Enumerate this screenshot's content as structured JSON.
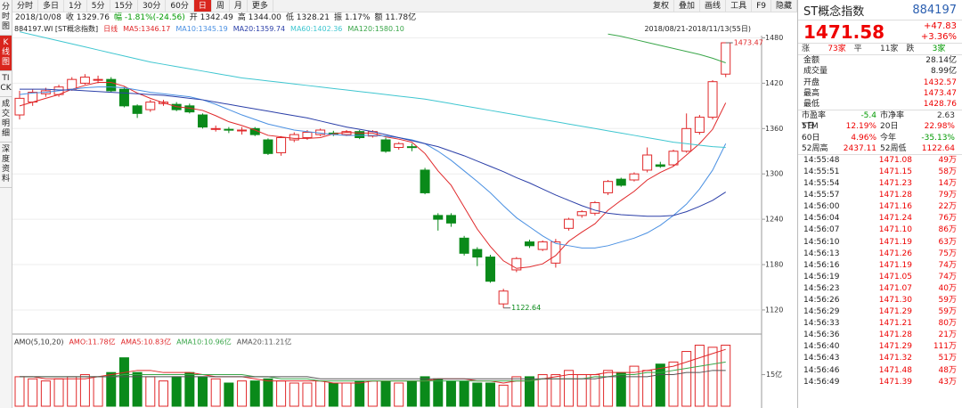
{
  "tabs": [
    "分时图",
    "K线图",
    "TICK",
    "成交明细",
    "深度资料"
  ],
  "toolbar": {
    "left": [
      "分时",
      "多日",
      "1分",
      "5分",
      "15分",
      "30分",
      "60分",
      "日",
      "周",
      "月",
      "更多"
    ],
    "right": [
      "复权",
      "叠加",
      "画线",
      "工具",
      "F9",
      "隐藏"
    ]
  },
  "info": [
    "2018/10/08",
    "收 1329.76",
    "幅 -1.81%(-24.56)",
    "开 1342.49",
    "高 1344.00",
    "低 1328.21",
    "振 1.17%",
    "额 11.78亿"
  ],
  "legend": {
    "code": "884197.WI [ST概念指数]",
    "items": [
      "日线",
      "MA5:1346.17",
      "MA10:1345.19",
      "MA20:1359.74",
      "MA60:1402.36",
      "MA120:1580.10"
    ],
    "range": "2018/08/21-2018/11/13(55日)"
  },
  "chart_data": {
    "type": "candlestick",
    "ylim": [
      1094,
      1490
    ],
    "yticks": [
      1120,
      1180,
      1240,
      1300,
      1360,
      1420,
      1480
    ],
    "candles": [
      {
        "open": 1378,
        "high": 1410,
        "low": 1372,
        "close": 1400
      },
      {
        "open": 1395,
        "high": 1412,
        "low": 1390,
        "close": 1408
      },
      {
        "open": 1406,
        "high": 1414,
        "low": 1402,
        "close": 1410
      },
      {
        "open": 1405,
        "high": 1418,
        "low": 1402,
        "close": 1415
      },
      {
        "open": 1412,
        "high": 1428,
        "low": 1410,
        "close": 1425
      },
      {
        "open": 1420,
        "high": 1432,
        "low": 1418,
        "close": 1428
      },
      {
        "open": 1424,
        "high": 1430,
        "low": 1420,
        "close": 1425
      },
      {
        "open": 1425,
        "high": 1428,
        "low": 1408,
        "close": 1410
      },
      {
        "open": 1412,
        "high": 1415,
        "low": 1388,
        "close": 1390
      },
      {
        "open": 1390,
        "high": 1392,
        "low": 1374,
        "close": 1380
      },
      {
        "open": 1385,
        "high": 1398,
        "low": 1382,
        "close": 1395
      },
      {
        "open": 1393,
        "high": 1398,
        "low": 1390,
        "close": 1395
      },
      {
        "open": 1392,
        "high": 1395,
        "low": 1383,
        "close": 1385
      },
      {
        "open": 1390,
        "high": 1393,
        "low": 1380,
        "close": 1382
      },
      {
        "open": 1378,
        "high": 1380,
        "low": 1360,
        "close": 1362
      },
      {
        "open": 1360,
        "high": 1364,
        "low": 1356,
        "close": 1360
      },
      {
        "open": 1359,
        "high": 1362,
        "low": 1354,
        "close": 1358
      },
      {
        "open": 1358,
        "high": 1362,
        "low": 1352,
        "close": 1358
      },
      {
        "open": 1360,
        "high": 1362,
        "low": 1350,
        "close": 1352
      },
      {
        "open": 1345,
        "high": 1347,
        "low": 1325,
        "close": 1327
      },
      {
        "open": 1328,
        "high": 1350,
        "low": 1324,
        "close": 1348
      },
      {
        "open": 1345,
        "high": 1355,
        "low": 1342,
        "close": 1352
      },
      {
        "open": 1348,
        "high": 1358,
        "low": 1345,
        "close": 1355
      },
      {
        "open": 1352,
        "high": 1360,
        "low": 1350,
        "close": 1358
      },
      {
        "open": 1354,
        "high": 1357,
        "low": 1350,
        "close": 1353
      },
      {
        "open": 1352,
        "high": 1358,
        "low": 1350,
        "close": 1356
      },
      {
        "open": 1356,
        "high": 1358,
        "low": 1346,
        "close": 1348
      },
      {
        "open": 1350,
        "high": 1358,
        "low": 1348,
        "close": 1356
      },
      {
        "open": 1345,
        "high": 1348,
        "low": 1328,
        "close": 1330
      },
      {
        "open": 1335,
        "high": 1342,
        "low": 1332,
        "close": 1340
      },
      {
        "open": 1336,
        "high": 1340,
        "low": 1330,
        "close": 1335
      },
      {
        "open": 1305,
        "high": 1308,
        "low": 1273,
        "close": 1275
      },
      {
        "open": 1245,
        "high": 1248,
        "low": 1225,
        "close": 1240
      },
      {
        "open": 1245,
        "high": 1248,
        "low": 1230,
        "close": 1235
      },
      {
        "open": 1215,
        "high": 1218,
        "low": 1192,
        "close": 1195
      },
      {
        "open": 1200,
        "high": 1203,
        "low": 1178,
        "close": 1190
      },
      {
        "open": 1190,
        "high": 1193,
        "low": 1156,
        "close": 1158
      },
      {
        "open": 1128,
        "high": 1148,
        "low": 1122.64,
        "close": 1145
      },
      {
        "open": 1173,
        "high": 1190,
        "low": 1170,
        "close": 1188
      },
      {
        "open": 1210,
        "high": 1213,
        "low": 1202,
        "close": 1205
      },
      {
        "open": 1200,
        "high": 1212,
        "low": 1198,
        "close": 1210
      },
      {
        "open": 1182,
        "high": 1214,
        "low": 1176,
        "close": 1210
      },
      {
        "open": 1228,
        "high": 1242,
        "low": 1225,
        "close": 1240
      },
      {
        "open": 1245,
        "high": 1252,
        "low": 1242,
        "close": 1250
      },
      {
        "open": 1248,
        "high": 1264,
        "low": 1245,
        "close": 1262
      },
      {
        "open": 1275,
        "high": 1292,
        "low": 1272,
        "close": 1290
      },
      {
        "open": 1293,
        "high": 1295,
        "low": 1283,
        "close": 1285
      },
      {
        "open": 1292,
        "high": 1302,
        "low": 1290,
        "close": 1300
      },
      {
        "open": 1305,
        "high": 1335,
        "low": 1302,
        "close": 1325
      },
      {
        "open": 1312,
        "high": 1316,
        "low": 1308,
        "close": 1310
      },
      {
        "open": 1312,
        "high": 1332,
        "low": 1310,
        "close": 1330
      },
      {
        "open": 1330,
        "high": 1380,
        "low": 1328,
        "close": 1360
      },
      {
        "open": 1355,
        "high": 1378,
        "low": 1352,
        "close": 1375
      },
      {
        "open": 1375,
        "high": 1424,
        "low": 1372,
        "close": 1422
      },
      {
        "open": 1432,
        "high": 1473.47,
        "low": 1428,
        "close": 1473.47
      }
    ],
    "series": [
      {
        "name": "MA5",
        "color": "#e0282a",
        "values": [
          1390,
          1395,
          1400,
          1405,
          1412,
          1417,
          1421,
          1421,
          1416,
          1407,
          1400,
          1394,
          1389,
          1387,
          1384,
          1377,
          1369,
          1364,
          1358,
          1351,
          1349,
          1347,
          1347,
          1348,
          1353,
          1355,
          1354,
          1354,
          1349,
          1346,
          1342,
          1327,
          1304,
          1285,
          1256,
          1227,
          1204,
          1185,
          1175,
          1177,
          1181,
          1192,
          1211,
          1223,
          1234,
          1252,
          1265,
          1277,
          1292,
          1302,
          1310,
          1325,
          1340,
          1359,
          1394
        ]
      },
      {
        "name": "MA10",
        "color": "#4a90e2",
        "values": [
          1405,
          1407,
          1408,
          1410,
          1412,
          1414,
          1415,
          1415,
          1414,
          1411,
          1408,
          1406,
          1404,
          1402,
          1398,
          1392,
          1385,
          1378,
          1372,
          1366,
          1362,
          1358,
          1356,
          1354,
          1352,
          1351,
          1351,
          1351,
          1350,
          1348,
          1345,
          1340,
          1330,
          1318,
          1304,
          1290,
          1275,
          1258,
          1242,
          1230,
          1218,
          1208,
          1205,
          1202,
          1202,
          1205,
          1210,
          1215,
          1222,
          1232,
          1245,
          1260,
          1280,
          1305,
          1340
        ]
      },
      {
        "name": "MA20",
        "color": "#2b3fa8",
        "values": [
          1412,
          1412,
          1412,
          1411,
          1411,
          1410,
          1409,
          1408,
          1407,
          1406,
          1405,
          1404,
          1402,
          1400,
          1398,
          1395,
          1392,
          1389,
          1386,
          1383,
          1380,
          1377,
          1374,
          1370,
          1366,
          1362,
          1359,
          1356,
          1352,
          1348,
          1344,
          1340,
          1336,
          1330,
          1324,
          1317,
          1310,
          1303,
          1295,
          1288,
          1280,
          1272,
          1265,
          1258,
          1252,
          1248,
          1246,
          1245,
          1244,
          1244,
          1245,
          1250,
          1257,
          1265,
          1276
        ]
      },
      {
        "name": "MA60",
        "color": "#3fc6d0",
        "values": [
          1488,
          1484,
          1480,
          1476,
          1472,
          1468,
          1464,
          1460,
          1456,
          1452,
          1448,
          1445,
          1442,
          1439,
          1436,
          1433,
          1430,
          1427,
          1425,
          1423,
          1421,
          1419,
          1417,
          1415,
          1413,
          1411,
          1409,
          1407,
          1405,
          1403,
          1401,
          1399,
          1396,
          1393,
          1390,
          1387,
          1384,
          1381,
          1378,
          1375,
          1372,
          1369,
          1366,
          1363,
          1360,
          1357,
          1354,
          1351,
          1348,
          1345,
          1342,
          1340,
          1338,
          1336,
          1335
        ]
      },
      {
        "name": "MA120",
        "color": "#3aa64a",
        "values": [
          null,
          null,
          null,
          null,
          null,
          null,
          null,
          null,
          null,
          null,
          null,
          null,
          null,
          null,
          null,
          null,
          null,
          null,
          null,
          null,
          null,
          null,
          null,
          null,
          null,
          null,
          null,
          null,
          null,
          null,
          null,
          null,
          null,
          null,
          null,
          null,
          null,
          null,
          null,
          null,
          null,
          null,
          null,
          null,
          null,
          1485,
          1482,
          1478,
          1474,
          1470,
          1466,
          1462,
          1458,
          1453,
          1447
        ]
      }
    ],
    "annotations": [
      {
        "text": "1473.47",
        "index": 54,
        "value": 1473.47
      },
      {
        "text": "1122.64",
        "index": 37,
        "value": 1122.64
      }
    ]
  },
  "volume": {
    "type": "bar",
    "legend": [
      "AMO(5,10,20)",
      "AMO:11.78亿",
      "AMA5:10.83亿",
      "AMA10:10.96亿",
      "AMA20:11.21亿"
    ],
    "ylim": [
      0,
      33
    ],
    "yticks": [
      {
        "value": 15,
        "label": "15亿"
      }
    ],
    "values": [
      14,
      13,
      12,
      13,
      14,
      15,
      14,
      16,
      23,
      16,
      14,
      12,
      14,
      16,
      14,
      13,
      11,
      12,
      12,
      13,
      12,
      11,
      11,
      12,
      11,
      11,
      12,
      12,
      12,
      11,
      12,
      14,
      13,
      12,
      12,
      11,
      11,
      10,
      14,
      14,
      15,
      15,
      17,
      15,
      15,
      17,
      16,
      19,
      17,
      20,
      21,
      26,
      29,
      28,
      29
    ],
    "series": [
      {
        "name": "AMA5",
        "color": "#e0282a",
        "values": [
          14,
          14,
          13,
          13,
          13,
          13,
          14,
          15,
          16,
          17,
          17,
          16,
          16,
          16,
          15,
          14,
          14,
          14,
          13,
          12,
          12,
          12,
          12,
          12,
          11,
          11,
          11,
          12,
          12,
          12,
          12,
          12,
          13,
          13,
          13,
          12,
          12,
          11,
          12,
          12,
          13,
          14,
          15,
          15,
          15,
          16,
          16,
          16,
          17,
          18,
          19,
          21,
          23,
          25,
          27
        ]
      },
      {
        "name": "AMA10",
        "color": "#3aa64a",
        "values": [
          14,
          14,
          14,
          14,
          14,
          14,
          14,
          14,
          15,
          15,
          15,
          15,
          15,
          15,
          15,
          15,
          15,
          15,
          14,
          14,
          13,
          13,
          13,
          12,
          12,
          12,
          12,
          12,
          12,
          12,
          12,
          12,
          12,
          12,
          12,
          12,
          12,
          12,
          12,
          12,
          13,
          13,
          13,
          13,
          14,
          14,
          15,
          15,
          16,
          16,
          17,
          18,
          19,
          20,
          21
        ]
      },
      {
        "name": "AMA20",
        "color": "#555555",
        "values": [
          14,
          14,
          14,
          14,
          14,
          14,
          14,
          14,
          14,
          14,
          14,
          14,
          14,
          14,
          14,
          14,
          14,
          14,
          14,
          14,
          14,
          14,
          14,
          13,
          13,
          13,
          13,
          13,
          13,
          13,
          13,
          13,
          13,
          13,
          13,
          13,
          13,
          13,
          13,
          13,
          13,
          13,
          13,
          13,
          13,
          14,
          14,
          14,
          14,
          15,
          15,
          16,
          16,
          17,
          17
        ]
      }
    ]
  },
  "panel": {
    "name": "ST概念指数",
    "code": "884197",
    "price": "1471.58",
    "change": "+47.83",
    "pct": "+3.36%",
    "breadth": [
      "涨",
      "73家",
      "平",
      "11家",
      "跌",
      "3家"
    ],
    "stats": [
      [
        "金额",
        "28.14亿"
      ],
      [
        "成交量",
        "8.99亿"
      ],
      [
        "开盘",
        "1432.57"
      ],
      [
        "最高",
        "1473.47"
      ],
      [
        "最低",
        "1428.76"
      ]
    ],
    "ratios": [
      [
        "市盈率TTM",
        "-5.4",
        "市净率",
        "2.63"
      ],
      [
        "5日",
        "12.19%",
        "20日",
        "22.98%"
      ],
      [
        "60日",
        "4.96%",
        "今年",
        "-35.13%"
      ],
      [
        "52周高",
        "2437.11",
        "52周低",
        "1122.64"
      ]
    ],
    "ticks": [
      [
        "14:55:48",
        "1471.08",
        "49万"
      ],
      [
        "14:55:51",
        "1471.15",
        "58万"
      ],
      [
        "14:55:54",
        "1471.23",
        "14万"
      ],
      [
        "14:55:57",
        "1471.28",
        "79万"
      ],
      [
        "14:56:00",
        "1471.16",
        "22万"
      ],
      [
        "14:56:04",
        "1471.24",
        "76万"
      ],
      [
        "14:56:07",
        "1471.10",
        "86万"
      ],
      [
        "14:56:10",
        "1471.19",
        "63万"
      ],
      [
        "14:56:13",
        "1471.26",
        "75万"
      ],
      [
        "14:56:16",
        "1471.19",
        "74万"
      ],
      [
        "14:56:19",
        "1471.05",
        "74万"
      ],
      [
        "14:56:23",
        "1471.07",
        "40万"
      ],
      [
        "14:56:26",
        "1471.30",
        "59万"
      ],
      [
        "14:56:29",
        "1471.29",
        "59万"
      ],
      [
        "14:56:33",
        "1471.21",
        "80万"
      ],
      [
        "14:56:36",
        "1471.28",
        "21万"
      ],
      [
        "14:56:40",
        "1471.29",
        "111万"
      ],
      [
        "14:56:43",
        "1471.32",
        "51万"
      ],
      [
        "14:56:46",
        "1471.48",
        "48万"
      ],
      [
        "14:56:49",
        "1471.39",
        "43万"
      ]
    ]
  }
}
